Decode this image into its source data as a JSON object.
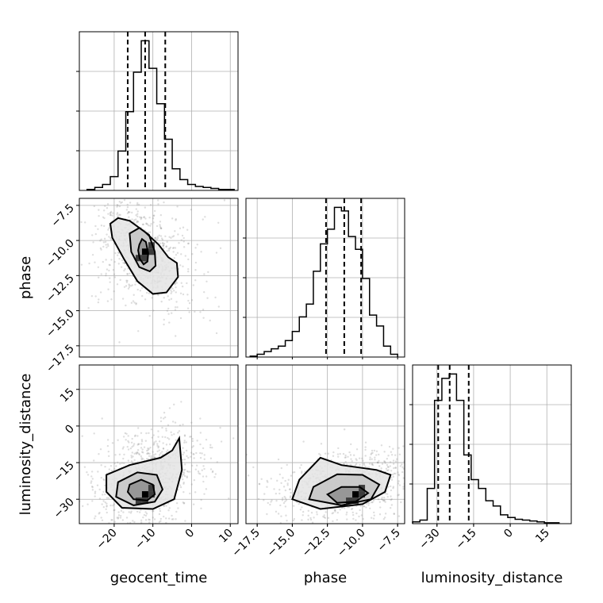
{
  "chart_data": {
    "type": "corner",
    "parameters": [
      "geocent_time",
      "phase",
      "luminosity_distance"
    ],
    "axis_labels": {
      "geocent_time": "geocent_time",
      "phase": "phase",
      "luminosity_distance": "luminosity_distance"
    },
    "ranges": {
      "geocent_time": [
        -29,
        12
      ],
      "phase": [
        -18.3,
        -7.0
      ],
      "luminosity_distance": [
        -40,
        25
      ]
    },
    "ticks": {
      "geocent_time": [
        -20,
        -10,
        0,
        10
      ],
      "phase": [
        -17.5,
        -15.0,
        -12.5,
        -10.0,
        -7.5
      ],
      "luminosity_distance": [
        -30,
        -15,
        0,
        15
      ]
    },
    "tick_labels": {
      "geocent_time": [
        "−20",
        "−10",
        "0",
        "10"
      ],
      "phase": [
        "−17.5",
        "−15.0",
        "−12.5",
        "−10.0",
        "−7.5"
      ],
      "luminosity_distance": [
        "−30",
        "−15",
        "0",
        "15"
      ]
    },
    "quantiles": {
      "geocent_time": [
        -16.5,
        -12.0,
        -6.8
      ],
      "phase": [
        -12.6,
        -11.3,
        -10.1
      ],
      "luminosity_distance": [
        -29.5,
        -24.8,
        -17.0
      ]
    },
    "histograms": {
      "geocent_time": {
        "bin_edges": [
          -27,
          -25,
          -23,
          -21,
          -19,
          -17,
          -15,
          -13,
          -11,
          -9,
          -7,
          -5,
          -3,
          -1,
          1,
          3,
          5,
          7,
          9,
          11
        ],
        "counts": [
          1,
          3,
          6,
          14,
          40,
          80,
          120,
          152,
          124,
          88,
          52,
          22,
          11,
          6,
          4,
          3,
          2,
          1,
          1
        ]
      },
      "phase": {
        "bin_edges": [
          -18.0,
          -17.5,
          -17.0,
          -16.5,
          -16.0,
          -15.5,
          -15.0,
          -14.5,
          -14.0,
          -13.5,
          -13.0,
          -12.5,
          -12.0,
          -11.5,
          -11.0,
          -10.5,
          -10.0,
          -9.5,
          -9.0,
          -8.5,
          -8.0,
          -7.5
        ],
        "counts": [
          1,
          3,
          6,
          9,
          12,
          18,
          28,
          44,
          58,
          94,
          124,
          140,
          164,
          160,
          132,
          118,
          86,
          46,
          34,
          12,
          3
        ]
      },
      "luminosity_distance": {
        "bin_edges": [
          -40,
          -37,
          -34,
          -31,
          -28,
          -25,
          -22,
          -19,
          -16,
          -13,
          -10,
          -7,
          -4,
          -1,
          2,
          5,
          8,
          11,
          14,
          17,
          20
        ],
        "counts": [
          2,
          4,
          40,
          140,
          165,
          170,
          140,
          78,
          50,
          40,
          26,
          20,
          10,
          7,
          5,
          4,
          3,
          2,
          1,
          1
        ]
      }
    },
    "pairs": [
      {
        "x": "geocent_time",
        "y": "phase",
        "density_peak": [
          -12,
          -10.8
        ],
        "contours": [
          [
            [
              -13.5,
              -10.3
            ],
            [
              -12.8,
              -9.9
            ],
            [
              -11.8,
              -10.1
            ],
            [
              -11.2,
              -10.9
            ],
            [
              -11.4,
              -11.5
            ],
            [
              -12.4,
              -11.7
            ],
            [
              -13.4,
              -11.3
            ],
            [
              -13.8,
              -10.7
            ]
          ],
          [
            [
              -16,
              -9.5
            ],
            [
              -13.5,
              -9.1
            ],
            [
              -11,
              -9.6
            ],
            [
              -9.5,
              -10.8
            ],
            [
              -9.3,
              -11.8
            ],
            [
              -10.8,
              -12.2
            ],
            [
              -13.5,
              -11.9
            ],
            [
              -15.6,
              -10.8
            ]
          ],
          [
            [
              -21,
              -8.8
            ],
            [
              -19,
              -8.4
            ],
            [
              -16,
              -8.6
            ],
            [
              -12,
              -9.4
            ],
            [
              -8.5,
              -10.3
            ],
            [
              -6,
              -11.2
            ],
            [
              -3.8,
              -11.6
            ],
            [
              -3.5,
              -12.6
            ],
            [
              -6.5,
              -13.7
            ],
            [
              -10,
              -13.8
            ],
            [
              -14,
              -12.9
            ],
            [
              -17.5,
              -11.3
            ],
            [
              -20.5,
              -9.8
            ]
          ]
        ]
      },
      {
        "x": "geocent_time",
        "y": "luminosity_distance",
        "density_peak": [
          -12,
          -28
        ],
        "contours": [
          [
            [
              -16,
              -24
            ],
            [
              -13,
              -22
            ],
            [
              -10,
              -24
            ],
            [
              -9.5,
              -28
            ],
            [
              -11.5,
              -30.5
            ],
            [
              -15,
              -30
            ],
            [
              -16.5,
              -27
            ]
          ],
          [
            [
              -19,
              -23
            ],
            [
              -14,
              -19
            ],
            [
              -9,
              -20
            ],
            [
              -7.5,
              -26
            ],
            [
              -9.5,
              -31
            ],
            [
              -15,
              -32.5
            ],
            [
              -19.5,
              -29
            ]
          ],
          [
            [
              -22,
              -20
            ],
            [
              -16,
              -16
            ],
            [
              -8,
              -13
            ],
            [
              -5,
              -10
            ],
            [
              -3.2,
              -5
            ],
            [
              -2.5,
              -18
            ],
            [
              -4.5,
              -30
            ],
            [
              -10,
              -34
            ],
            [
              -18,
              -33.5
            ],
            [
              -22,
              -27
            ]
          ]
        ]
      },
      {
        "x": "phase",
        "y": "luminosity_distance",
        "density_peak": [
          -10.5,
          -28
        ],
        "contours": [
          [
            [
              -12.5,
              -28
            ],
            [
              -11.5,
              -25
            ],
            [
              -10.2,
              -25
            ],
            [
              -9.6,
              -27.5
            ],
            [
              -10.5,
              -31
            ],
            [
              -11.8,
              -31.5
            ]
          ],
          [
            [
              -13.5,
              -25
            ],
            [
              -11.8,
              -19.8
            ],
            [
              -10,
              -20
            ],
            [
              -8.8,
              -24
            ],
            [
              -9.4,
              -30
            ],
            [
              -11.5,
              -32.5
            ],
            [
              -13.8,
              -30
            ]
          ],
          [
            [
              -14.5,
              -22
            ],
            [
              -13,
              -13
            ],
            [
              -11.5,
              -16
            ],
            [
              -9,
              -18
            ],
            [
              -8,
              -20
            ],
            [
              -8.4,
              -27
            ],
            [
              -10,
              -32
            ],
            [
              -13,
              -34
            ],
            [
              -15,
              -30
            ]
          ]
        ]
      }
    ]
  }
}
